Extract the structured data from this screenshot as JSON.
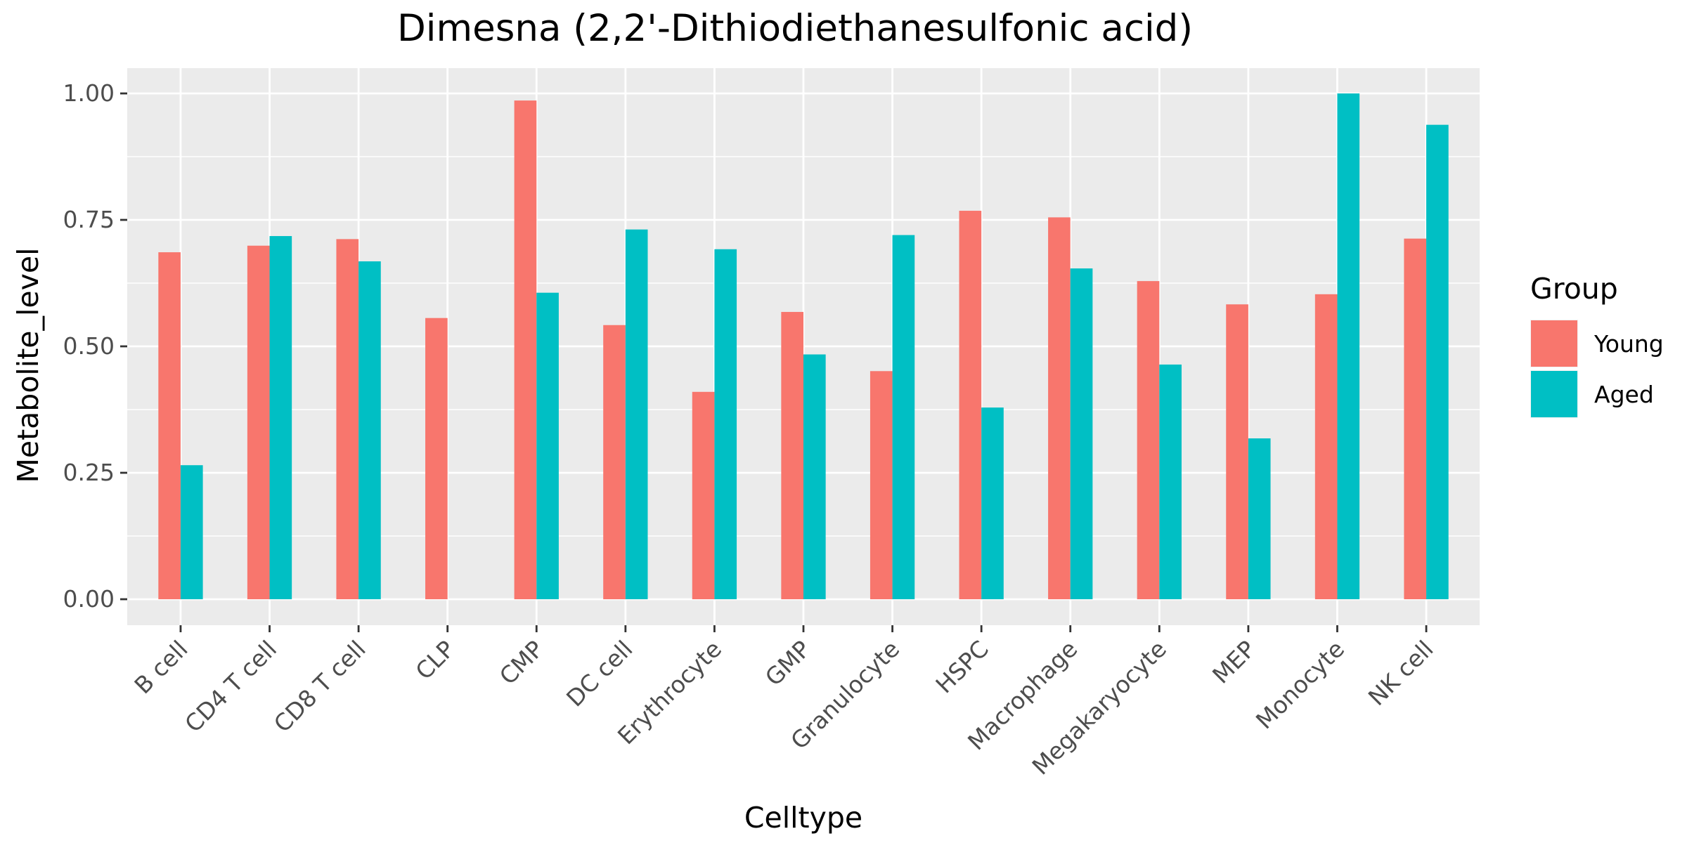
{
  "chart_data": {
    "type": "bar",
    "title": "Dimesna (2,2'-Dithiodiethanesulfonic acid)",
    "xlabel": "Celltype",
    "ylabel": "Metabolite_level",
    "ylim": [
      0,
      1.05
    ],
    "yticks": [
      "0.00",
      "0.25",
      "0.50",
      "0.75",
      "1.00"
    ],
    "ytick_values": [
      0,
      0.25,
      0.5,
      0.75,
      1.0
    ],
    "grid": true,
    "legend": {
      "title": "Group",
      "position": "right"
    },
    "categories": [
      "B cell",
      "CD4 T cell",
      "CD8 T cell",
      "CLP",
      "CMP",
      "DC cell",
      "Erythrocyte",
      "GMP",
      "Granulocyte",
      "HSPC",
      "Macrophage",
      "Megakaryocyte",
      "MEP",
      "Monocyte",
      "NK cell"
    ],
    "series": [
      {
        "name": "Young",
        "color": "#F8766D",
        "values": [
          0.686,
          0.699,
          0.712,
          0.556,
          0.986,
          0.542,
          0.41,
          0.568,
          0.451,
          0.768,
          0.755,
          0.629,
          0.583,
          0.603,
          0.713
        ]
      },
      {
        "name": "Aged",
        "color": "#00BFC4",
        "values": [
          0.265,
          0.718,
          0.668,
          null,
          0.606,
          0.731,
          0.692,
          0.484,
          0.72,
          0.379,
          0.654,
          0.464,
          0.318,
          1.0,
          0.938
        ]
      }
    ]
  }
}
